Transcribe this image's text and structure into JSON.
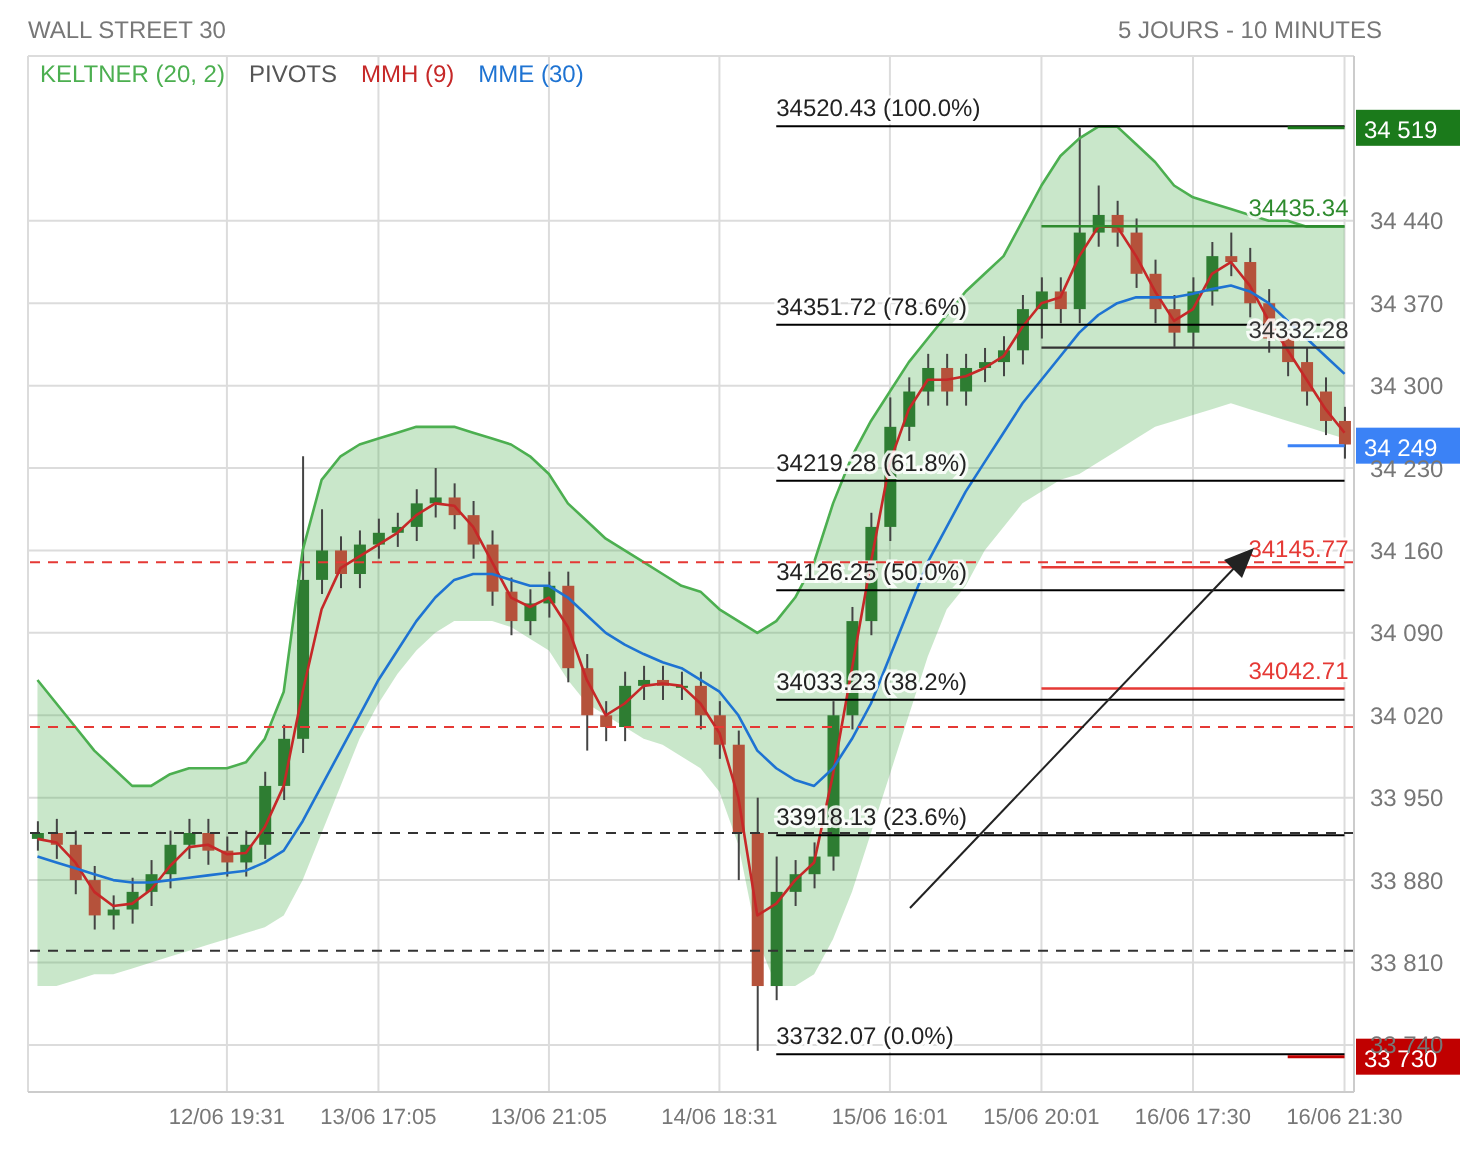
{
  "chart_data": {
    "type": "candlestick",
    "title": "WALL STREET 30",
    "subtitle": "5 JOURS - 10 MINUTES",
    "categories": [
      null,
      null,
      null,
      null,
      null,
      null,
      null,
      null,
      null,
      null,
      "12/06 19:31",
      null,
      null,
      null,
      null,
      null,
      null,
      null,
      "13/06 17:05",
      null,
      null,
      null,
      null,
      null,
      null,
      null,
      null,
      "13/06 21:05",
      null,
      null,
      null,
      null,
      null,
      null,
      null,
      null,
      "14/06 18:31",
      null,
      null,
      null,
      null,
      null,
      null,
      null,
      null,
      "15/06 16:01",
      null,
      null,
      null,
      null,
      null,
      null,
      null,
      "15/06 20:01",
      null,
      null,
      null,
      null,
      null,
      null,
      null,
      "16/06 17:30",
      null,
      null,
      null,
      null,
      null,
      null,
      null,
      "16/06 21:30"
    ],
    "ohlc": [
      [
        33915,
        33930,
        33905,
        33920
      ],
      [
        33920,
        33932,
        33898,
        33910
      ],
      [
        33910,
        33922,
        33868,
        33880
      ],
      [
        33880,
        33892,
        33838,
        33850
      ],
      [
        33850,
        33867,
        33838,
        33855
      ],
      [
        33855,
        33882,
        33843,
        33870
      ],
      [
        33870,
        33897,
        33858,
        33885
      ],
      [
        33885,
        33922,
        33873,
        33910
      ],
      [
        33910,
        33932,
        33898,
        33920
      ],
      [
        33920,
        33932,
        33893,
        33905
      ],
      [
        33905,
        33917,
        33883,
        33895
      ],
      [
        33895,
        33922,
        33883,
        33910
      ],
      [
        33910,
        33972,
        33898,
        33960
      ],
      [
        33960,
        34012,
        33948,
        34000
      ],
      [
        34000,
        34240,
        33988,
        34135
      ],
      [
        34135,
        34195,
        34123,
        34160
      ],
      [
        34160,
        34172,
        34128,
        34140
      ],
      [
        34140,
        34177,
        34128,
        34165
      ],
      [
        34165,
        34187,
        34153,
        34175
      ],
      [
        34175,
        34192,
        34163,
        34180
      ],
      [
        34180,
        34212,
        34168,
        34200
      ],
      [
        34200,
        34230,
        34188,
        34205
      ],
      [
        34205,
        34217,
        34178,
        34190
      ],
      [
        34190,
        34202,
        34153,
        34165
      ],
      [
        34165,
        34177,
        34113,
        34125
      ],
      [
        34125,
        34137,
        34088,
        34100
      ],
      [
        34100,
        34127,
        34088,
        34115
      ],
      [
        34115,
        34142,
        34103,
        34130
      ],
      [
        34130,
        34142,
        34048,
        34060
      ],
      [
        34060,
        34072,
        33990,
        34020
      ],
      [
        34020,
        34032,
        33998,
        34010
      ],
      [
        34010,
        34057,
        33998,
        34045
      ],
      [
        34045,
        34062,
        34033,
        34050
      ],
      [
        34050,
        34062,
        34033,
        34045
      ],
      [
        34045,
        34057,
        34033,
        34045
      ],
      [
        34045,
        34057,
        34008,
        34020
      ],
      [
        34020,
        34032,
        33983,
        33995
      ],
      [
        33995,
        34007,
        33880,
        33920
      ],
      [
        33920,
        33950,
        33735,
        33790
      ],
      [
        33790,
        33900,
        33778,
        33870
      ],
      [
        33870,
        33897,
        33858,
        33885
      ],
      [
        33885,
        33912,
        33873,
        33900
      ],
      [
        33900,
        34032,
        33888,
        34020
      ],
      [
        34020,
        34112,
        34008,
        34100
      ],
      [
        34100,
        34192,
        34088,
        34180
      ],
      [
        34180,
        34290,
        34168,
        34265
      ],
      [
        34265,
        34307,
        34253,
        34295
      ],
      [
        34295,
        34327,
        34283,
        34315
      ],
      [
        34315,
        34327,
        34283,
        34295
      ],
      [
        34295,
        34327,
        34283,
        34315
      ],
      [
        34315,
        34332,
        34303,
        34320
      ],
      [
        34320,
        34342,
        34308,
        34330
      ],
      [
        34330,
        34377,
        34318,
        34365
      ],
      [
        34365,
        34392,
        34340,
        34380
      ],
      [
        34380,
        34392,
        34353,
        34365
      ],
      [
        34365,
        34519,
        34353,
        34430
      ],
      [
        34430,
        34470,
        34418,
        34445
      ],
      [
        34445,
        34457,
        34418,
        34430
      ],
      [
        34430,
        34442,
        34383,
        34395
      ],
      [
        34395,
        34407,
        34353,
        34365
      ],
      [
        34365,
        34377,
        34333,
        34345
      ],
      [
        34345,
        34392,
        34333,
        34380
      ],
      [
        34380,
        34422,
        34368,
        34410
      ],
      [
        34410,
        34430,
        34393,
        34405
      ],
      [
        34405,
        34417,
        34358,
        34370
      ],
      [
        34370,
        34382,
        34328,
        34340
      ],
      [
        34340,
        34352,
        34308,
        34320
      ],
      [
        34320,
        34332,
        34283,
        34295
      ],
      [
        34295,
        34307,
        34258,
        34270
      ],
      [
        34270,
        34282,
        34238,
        34250
      ]
    ],
    "series": [
      {
        "name": "KELTNER (20, 2)",
        "type": "line",
        "color": "#4caf50",
        "values": [
          34050,
          34030,
          34010,
          33990,
          33975,
          33960,
          33960,
          33970,
          33975,
          33975,
          33975,
          33980,
          34000,
          34040,
          34160,
          34220,
          34240,
          34250,
          34255,
          34260,
          34265,
          34265,
          34265,
          34260,
          34255,
          34250,
          34240,
          34225,
          34200,
          34185,
          34170,
          34160,
          34150,
          34140,
          34130,
          34125,
          34110,
          34100,
          34090,
          34100,
          34120,
          34150,
          34200,
          34240,
          34270,
          34295,
          34320,
          34340,
          34360,
          34380,
          34395,
          34410,
          34440,
          34470,
          34495,
          34510,
          34520,
          34520,
          34505,
          34490,
          34470,
          34460,
          34455,
          34450,
          34445,
          34440,
          34440,
          34435,
          34435,
          34435
        ],
        "upper": [
          34050,
          34030,
          34010,
          33990,
          33975,
          33960,
          33960,
          33970,
          33975,
          33975,
          33975,
          33980,
          34000,
          34040,
          34160,
          34220,
          34240,
          34250,
          34255,
          34260,
          34265,
          34265,
          34265,
          34260,
          34255,
          34250,
          34240,
          34225,
          34200,
          34185,
          34170,
          34160,
          34150,
          34140,
          34130,
          34125,
          34110,
          34100,
          34090,
          34100,
          34120,
          34150,
          34200,
          34240,
          34270,
          34295,
          34320,
          34340,
          34360,
          34380,
          34395,
          34410,
          34440,
          34470,
          34495,
          34510,
          34520,
          34520,
          34505,
          34490,
          34470,
          34460,
          34455,
          34450,
          34445,
          34440,
          34440,
          34435,
          34435,
          34435
        ],
        "lower": [
          33790,
          33790,
          33795,
          33800,
          33800,
          33805,
          33810,
          33815,
          33820,
          33825,
          33830,
          33835,
          33840,
          33850,
          33880,
          33920,
          33960,
          34000,
          34030,
          34055,
          34075,
          34090,
          34100,
          34100,
          34100,
          34095,
          34085,
          34075,
          34050,
          34030,
          34020,
          34010,
          34000,
          33995,
          33985,
          33975,
          33955,
          33910,
          33830,
          33790,
          33790,
          33800,
          33830,
          33870,
          33920,
          33970,
          34020,
          34070,
          34110,
          34130,
          34160,
          34180,
          34200,
          34210,
          34220,
          34225,
          34235,
          34245,
          34255,
          34265,
          34270,
          34275,
          34280,
          34285,
          34280,
          34275,
          34270,
          34265,
          34260,
          34255
        ]
      },
      {
        "name": "MMH (9)",
        "type": "line",
        "color": "#c62828",
        "values": [
          33915,
          33912,
          33895,
          33870,
          33858,
          33860,
          33872,
          33892,
          33908,
          33910,
          33902,
          33903,
          33925,
          33960,
          34040,
          34110,
          34145,
          34155,
          34165,
          34175,
          34190,
          34200,
          34198,
          34180,
          34150,
          34120,
          34112,
          34120,
          34095,
          34050,
          34020,
          34030,
          34045,
          34047,
          34045,
          34030,
          34005,
          33950,
          33850,
          33860,
          33880,
          33895,
          33970,
          34060,
          34150,
          34235,
          34280,
          34305,
          34305,
          34308,
          34315,
          34325,
          34350,
          34370,
          34375,
          34410,
          34435,
          34435,
          34410,
          34380,
          34355,
          34365,
          34395,
          34405,
          34385,
          34355,
          34330,
          34305,
          34280,
          34260
        ]
      },
      {
        "name": "MME (30)",
        "type": "line",
        "color": "#1e73d2",
        "values": [
          33900,
          33895,
          33890,
          33885,
          33880,
          33878,
          33878,
          33880,
          33882,
          33884,
          33886,
          33888,
          33895,
          33905,
          33930,
          33960,
          33990,
          34020,
          34050,
          34075,
          34100,
          34120,
          34135,
          34140,
          34140,
          34135,
          34130,
          34130,
          34120,
          34105,
          34090,
          34080,
          34072,
          34065,
          34060,
          34050,
          34040,
          34020,
          33990,
          33975,
          33965,
          33960,
          33975,
          34000,
          34030,
          34070,
          34110,
          34150,
          34180,
          34210,
          34235,
          34260,
          34285,
          34305,
          34325,
          34345,
          34360,
          34370,
          34375,
          34375,
          34375,
          34378,
          34382,
          34385,
          34380,
          34370,
          34355,
          34340,
          34325,
          34310
        ]
      }
    ],
    "ylim": [
      33700,
      34580
    ],
    "yticks": [
      {
        "value": 33740,
        "label": "33 740"
      },
      {
        "value": 33810,
        "label": "33 810"
      },
      {
        "value": 33880,
        "label": "33 880"
      },
      {
        "value": 33950,
        "label": "33 950"
      },
      {
        "value": 34020,
        "label": "34 020"
      },
      {
        "value": 34090,
        "label": "34 090"
      },
      {
        "value": 34160,
        "label": "34 160"
      },
      {
        "value": 34230,
        "label": "34 230"
      },
      {
        "value": 34300,
        "label": "34 300"
      },
      {
        "value": 34370,
        "label": "34 370"
      },
      {
        "value": 34440,
        "label": "34 440"
      }
    ],
    "ref_lines": [
      {
        "axis": "y",
        "value": 34520.43,
        "label": "34520.43 (100.0%)"
      },
      {
        "axis": "y",
        "value": 34351.72,
        "label": "34351.72 (78.6%)"
      },
      {
        "axis": "y",
        "value": 34219.28,
        "label": "34219.28 (61.8%)"
      },
      {
        "axis": "y",
        "value": 34126.25,
        "label": "34126.25 (50.0%)"
      },
      {
        "axis": "y",
        "value": 34033.23,
        "label": "34033.23 (38.2%)"
      },
      {
        "axis": "y",
        "value": 33918.13,
        "label": "33918.13 (23.6%)"
      },
      {
        "axis": "y",
        "value": 33732.07,
        "label": "33732.07 (0.0%)"
      },
      {
        "axis": "y",
        "value": 34435.34,
        "label": "34435.34",
        "color": "#2e8b2e"
      },
      {
        "axis": "y",
        "value": 34332.28,
        "label": "34332.28",
        "color": "#333333"
      },
      {
        "axis": "y",
        "value": 34145.77,
        "label": "34145.77",
        "color": "#e53935"
      },
      {
        "axis": "y",
        "value": 34042.71,
        "label": "34042.71",
        "color": "#e53935"
      },
      {
        "axis": "y",
        "value": 34150,
        "color": "#e53935",
        "line_style": "dashed"
      },
      {
        "axis": "y",
        "value": 34010,
        "color": "#e53935",
        "line_style": "dashed"
      },
      {
        "axis": "y",
        "value": 33920,
        "color": "#333333",
        "line_style": "dashed"
      },
      {
        "axis": "y",
        "value": 33820,
        "color": "#333333",
        "line_style": "dashed"
      },
      {
        "axis": "y",
        "value": 34519,
        "label": "34 519",
        "color": "#1b7a1b",
        "line_style": "solid"
      },
      {
        "axis": "y",
        "value": 34249,
        "label": "34 249",
        "color": "#3b82f6",
        "line_style": "solid"
      },
      {
        "axis": "y",
        "value": 33730,
        "label": "33 730",
        "color": "#c00000",
        "line_style": "solid"
      }
    ],
    "annotations": [
      "PIVOTS"
    ],
    "grid": true,
    "legend": "top left"
  }
}
